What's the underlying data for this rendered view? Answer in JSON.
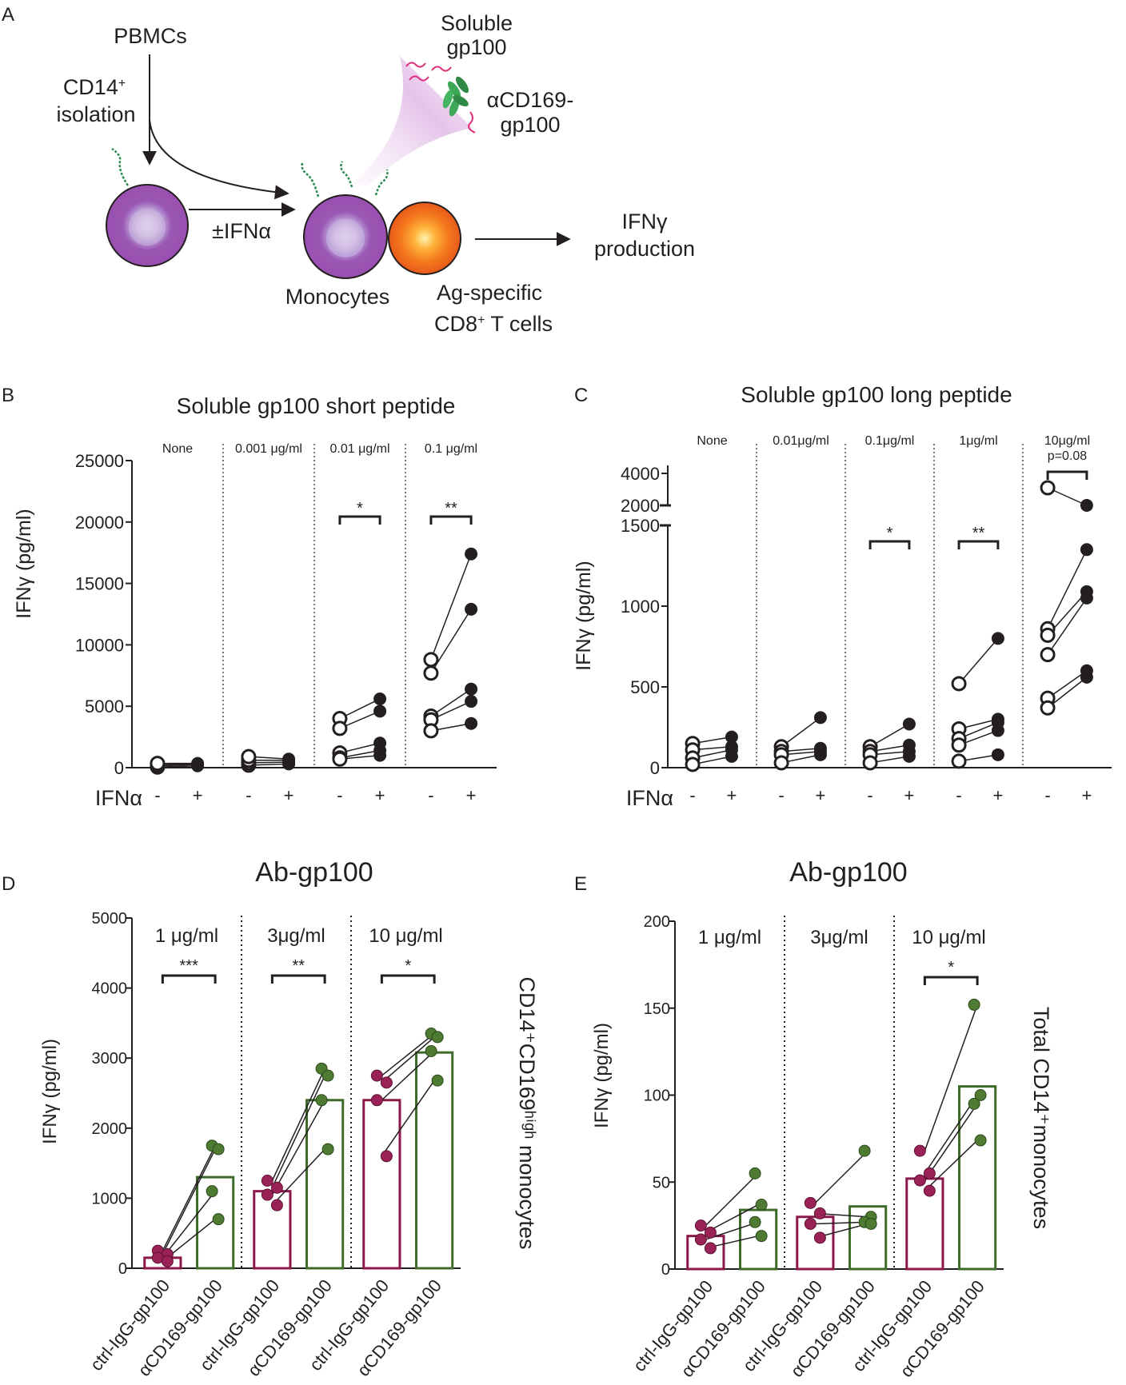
{
  "colors": {
    "ink": "#231f20",
    "ctrl": "#8b1a4a",
    "alpha": "#3f6b2a",
    "alphaFill": "#4e7a32",
    "ctrlFill": "#9b2257",
    "monocyte": "#a05db5",
    "tcell": "#ee6a1c",
    "beam": "#e7c6ea",
    "peptide": "#e0307a",
    "antibody": "#3da858"
  },
  "panel_a": {
    "label": "A",
    "pbmcs": "PBMCs",
    "cd14_line1": "CD14",
    "cd14_sup": "+",
    "cd14_line2": "isolation",
    "soluble_line1": "Soluble",
    "soluble_line2": "gp100",
    "acd169_line1": "αCD169-",
    "acd169_line2": "gp100",
    "ifna": "±IFNα",
    "monocytes": "Monocytes",
    "ag_line1": "Ag-specific",
    "ag_line2_pre": "CD8",
    "ag_line2_sup": "+",
    "ag_line2_post": " T cells",
    "ifng_line1": "IFNγ",
    "ifng_line2": "production"
  },
  "chart_data": [
    {
      "panel": "B",
      "type": "paired-scatter",
      "title": "Soluble gp100 short peptide",
      "ylabel": "IFNγ (pg/ml)",
      "ylim": [
        0,
        25000
      ],
      "yticks": [
        0,
        5000,
        10000,
        15000,
        20000,
        25000
      ],
      "x_row_label": "IFNα",
      "x_signs": [
        "-",
        "+"
      ],
      "groups": [
        {
          "label": "None",
          "minus": [
            50,
            150,
            250,
            350
          ],
          "plus": [
            150,
            250,
            300,
            350
          ],
          "sig": ""
        },
        {
          "label": "0.001 μg/ml",
          "minus": [
            200,
            400,
            600,
            900
          ],
          "plus": [
            300,
            450,
            600,
            700
          ],
          "sig": ""
        },
        {
          "label": "0.01 μg/ml",
          "minus": [
            4000,
            3200,
            1200,
            800,
            700
          ],
          "plus": [
            5600,
            4600,
            2000,
            1400,
            1000
          ],
          "sig": "*"
        },
        {
          "label": "0.1 μg/ml",
          "minus": [
            8800,
            7700,
            4200,
            3900,
            3000
          ],
          "plus": [
            17400,
            12900,
            6400,
            5400,
            3600
          ],
          "sig": "**"
        }
      ]
    },
    {
      "panel": "C",
      "type": "paired-scatter",
      "title": "Soluble gp100 long peptide",
      "ylabel": "IFNγ (pg/ml)",
      "ylim": [
        0,
        1500
      ],
      "upper_segment": {
        "ticks": [
          2000,
          4000
        ],
        "range": [
          2000,
          4500
        ]
      },
      "yticks": [
        0,
        500,
        1000,
        1500
      ],
      "x_row_label": "IFNα",
      "x_signs": [
        "-",
        "+"
      ],
      "groups": [
        {
          "label": "None",
          "minus": [
            150,
            110,
            60,
            20
          ],
          "plus": [
            190,
            130,
            110,
            70
          ],
          "sig": ""
        },
        {
          "label": "0.01μg/ml",
          "minus": [
            130,
            100,
            80,
            30
          ],
          "plus": [
            310,
            120,
            100,
            80
          ],
          "sig": ""
        },
        {
          "label": "0.1μg/ml",
          "minus": [
            130,
            100,
            80,
            30
          ],
          "plus": [
            270,
            140,
            100,
            70
          ],
          "sig": "*"
        },
        {
          "label": "1μg/ml",
          "minus": [
            520,
            240,
            180,
            140,
            40
          ],
          "plus": [
            800,
            300,
            280,
            230,
            80
          ],
          "sig": "**"
        },
        {
          "label": "10μg/ml",
          "sublabel": "p=0.08",
          "minus": [
            3100,
            860,
            820,
            700,
            430,
            370
          ],
          "plus": [
            2000,
            1350,
            1090,
            1050,
            600,
            560
          ],
          "sig": ""
        }
      ]
    },
    {
      "panel": "D",
      "type": "bar+paired-scatter",
      "title": "Ab-gp100",
      "ylabel": "IFNγ (pg/ml)",
      "side_label": "CD14⁺CD169ʰⁱᵍʰ monocytes",
      "ylim": [
        0,
        5000
      ],
      "yticks": [
        0,
        1000,
        2000,
        3000,
        4000,
        5000
      ],
      "categories": [
        "ctrl-IgG-gp100",
        "αCD169-gp100"
      ],
      "groups": [
        {
          "label": "1 μg/ml",
          "sig": "***",
          "ctrl_mean": 150,
          "alpha_mean": 1300,
          "ctrl": [
            250,
            200,
            150,
            100
          ],
          "alpha": [
            1750,
            1700,
            1100,
            700
          ]
        },
        {
          "label": "3μg/ml",
          "sig": "**",
          "ctrl_mean": 1100,
          "alpha_mean": 2400,
          "ctrl": [
            1250,
            1150,
            1050,
            900
          ],
          "alpha": [
            2850,
            2750,
            2400,
            1700
          ]
        },
        {
          "label": "10 μg/ml",
          "sig": "*",
          "ctrl_mean": 2400,
          "alpha_mean": 3080,
          "ctrl": [
            2750,
            2650,
            2400,
            1600
          ],
          "alpha": [
            3350,
            3300,
            3100,
            2680
          ]
        }
      ]
    },
    {
      "panel": "E",
      "type": "bar+paired-scatter",
      "title": "Ab-gp100",
      "ylabel": "IFNγ (pg/ml)",
      "side_label": "Total CD14⁺monocytes",
      "ylim": [
        0,
        200
      ],
      "yticks": [
        0,
        50,
        100,
        150,
        200
      ],
      "categories": [
        "ctrl-IgG-gp100",
        "αCD169-gp100"
      ],
      "groups": [
        {
          "label": "1 μg/ml",
          "sig": "",
          "ctrl_mean": 19,
          "alpha_mean": 34,
          "ctrl": [
            25,
            21,
            17,
            12
          ],
          "alpha": [
            55,
            37,
            27,
            19
          ]
        },
        {
          "label": "3μg/ml",
          "sig": "",
          "ctrl_mean": 30,
          "alpha_mean": 36,
          "ctrl": [
            38,
            32,
            26,
            18
          ],
          "alpha": [
            68,
            30,
            27,
            26
          ]
        },
        {
          "label": "10 μg/ml",
          "sig": "*",
          "ctrl_mean": 52,
          "alpha_mean": 105,
          "ctrl": [
            68,
            55,
            51,
            45
          ],
          "alpha": [
            152,
            100,
            95,
            74
          ]
        }
      ]
    }
  ]
}
